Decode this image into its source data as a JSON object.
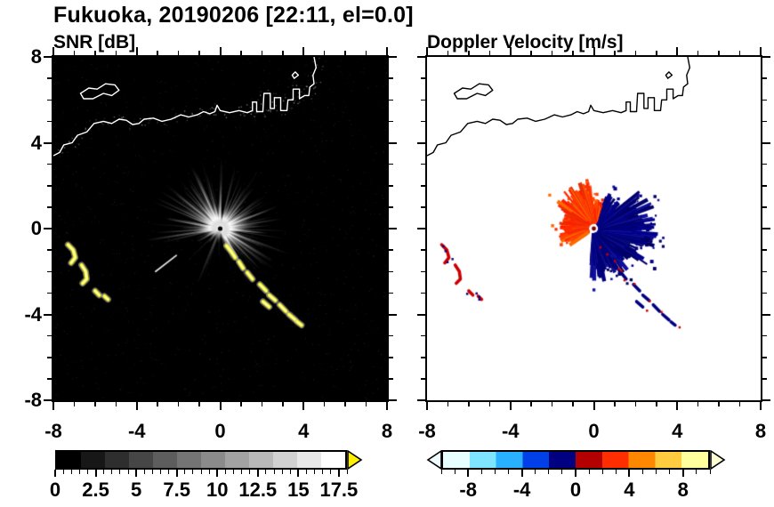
{
  "title": "Fukuoka, 20190206 [22:11, el=0.0]",
  "panels": [
    {
      "title": "SNR [dB]"
    },
    {
      "title": "Doppler Velocity [m/s]"
    }
  ],
  "axes": {
    "xlim": [
      -8,
      8
    ],
    "ylim": [
      -8,
      8
    ],
    "minor_step": 1,
    "major_ticks": [
      -8,
      -4,
      0,
      4,
      8
    ],
    "xtick_labels": [
      "-8",
      "-4",
      "0",
      "4",
      "8"
    ],
    "ytick_values": [
      8,
      4,
      0,
      -4,
      -8
    ],
    "ytick_labels": [
      "8",
      "4",
      "0",
      "-4",
      "-8"
    ]
  },
  "colorbars": [
    {
      "id": "snr",
      "style": "grayscale",
      "n_steps": 12,
      "range": [
        0,
        18
      ],
      "minor_step": 0.5,
      "tick_values": [
        0,
        2.5,
        5,
        7.5,
        10,
        12.5,
        15,
        17.5
      ],
      "tick_labels": [
        "0",
        "2.5",
        "5",
        "7.5",
        "10",
        "12.5",
        "15",
        "17.5"
      ],
      "over_arrow_color": "#ffef00"
    },
    {
      "id": "velocity",
      "style": "segments",
      "segments": [
        "#e6feff",
        "#7fe4ff",
        "#29b0ff",
        "#0040e6",
        "#000080",
        "#b30000",
        "#ff2e00",
        "#ff8800",
        "#ffcc40",
        "#ffff9e"
      ],
      "range": [
        -10,
        10
      ],
      "minor_step": 1,
      "tick_values": [
        -8,
        -4,
        0,
        4,
        8
      ],
      "tick_labels": [
        "-8",
        "-4",
        "0",
        "4",
        "8"
      ],
      "under_arrow_color": "#eefcff",
      "over_arrow_color": "#ffffd6"
    }
  ],
  "chart_data": {
    "type": "heatmap",
    "subtype": "radar-ppi-pair",
    "site": "Fukuoka",
    "date": "20190206",
    "time": "22:11",
    "elevation_deg": 0.0,
    "axis_range_km": [
      -8,
      8
    ],
    "panel_descriptions": [
      "SNR [dB]: black background, grayscale radial streaks radiating from the radar at the origin out to ~3.5 km, sparse toward the south-west; yellow over-range (>17.5 dB) clutter arcs in the west and along a south-east line",
      "Doppler Velocity [m/s]: white background, positive (red-orange) velocity fan north/north-west of radar out to ~2.4 km, negative (navy) velocity fan east/south-east out to ~3.1 km; scattered red/navy echoes mirror the SNR clutter"
    ],
    "snr_echo": {
      "n_rays": 360,
      "sparse_azimuth_deg": [
        195,
        285
      ],
      "max_range_km": 3.0,
      "lone_streak": [
        [
          -2.1,
          -1.25
        ],
        [
          -3.1,
          -2.0
        ]
      ]
    },
    "velocity_echo": {
      "positive_sector": {
        "azimuth_deg": [
          72,
          215
        ],
        "colors": [
          "#ff2a00",
          "#ff4400",
          "#e63000",
          "#ff6a00",
          "#ff1a00"
        ]
      },
      "negative_sector": {
        "azimuth_deg": [
          -95,
          70
        ],
        "colors": [
          "#000080",
          "#000066",
          "#00008b",
          "#101099"
        ]
      },
      "center_dot_color": "#800000"
    },
    "clutter_features": {
      "snr_color": "#ffff00",
      "west_cluster_color_velocity": "#cc0000",
      "west_cluster_speck_color": "#000080",
      "southeast_chain_color_velocity": "#000080",
      "southeast_chain_speck_color": "#cc0000",
      "west_cluster": [
        [
          [
            -7.3,
            -0.75
          ],
          [
            -7.05,
            -1.0
          ],
          [
            -6.95,
            -1.35
          ],
          [
            -7.15,
            -1.6
          ]
        ],
        [
          [
            -6.65,
            -1.7
          ],
          [
            -6.45,
            -2.0
          ],
          [
            -6.4,
            -2.35
          ],
          [
            -6.6,
            -2.55
          ]
        ],
        [
          [
            -6.0,
            -2.9
          ],
          [
            -5.8,
            -3.1
          ]
        ],
        [
          [
            -5.55,
            -3.15
          ],
          [
            -5.38,
            -3.3
          ]
        ]
      ],
      "southeast_chain": [
        [
          [
            0.3,
            -0.8
          ],
          [
            0.55,
            -1.1
          ],
          [
            0.72,
            -1.35
          ]
        ],
        [
          [
            0.9,
            -1.55
          ],
          [
            1.1,
            -1.85
          ]
        ],
        [
          [
            1.3,
            -2.05
          ],
          [
            1.55,
            -2.35
          ]
        ],
        [
          [
            1.9,
            -2.6
          ],
          [
            2.2,
            -2.9
          ]
        ],
        [
          [
            2.35,
            -3.1
          ],
          [
            2.65,
            -3.35
          ]
        ],
        [
          [
            2.05,
            -3.4
          ],
          [
            2.35,
            -3.65
          ]
        ],
        [
          [
            2.85,
            -3.55
          ],
          [
            3.15,
            -3.85
          ]
        ],
        [
          [
            3.3,
            -4.0
          ],
          [
            3.6,
            -4.25
          ]
        ],
        [
          [
            3.7,
            -4.35
          ],
          [
            3.9,
            -4.5
          ]
        ]
      ]
    },
    "coastline": {
      "main": [
        [
          -8,
          3.4
        ],
        [
          -7.7,
          3.55
        ],
        [
          -7.5,
          3.9
        ],
        [
          -7.1,
          4.0
        ],
        [
          -6.85,
          4.35
        ],
        [
          -6.4,
          4.5
        ],
        [
          -6.05,
          4.9
        ],
        [
          -5.6,
          5.0
        ],
        [
          -5.2,
          4.9
        ],
        [
          -4.85,
          5.1
        ],
        [
          -4.5,
          5.05
        ],
        [
          -4.2,
          4.85
        ],
        [
          -3.9,
          4.9
        ],
        [
          -3.65,
          5.1
        ],
        [
          -3.2,
          5.15
        ],
        [
          -2.8,
          5.0
        ],
        [
          -2.35,
          5.1
        ],
        [
          -1.9,
          5.3
        ],
        [
          -1.5,
          5.2
        ],
        [
          -1.1,
          5.3
        ],
        [
          -0.8,
          5.45
        ],
        [
          -0.5,
          5.35
        ],
        [
          -0.25,
          5.45
        ],
        [
          -0.15,
          5.75
        ],
        [
          0.0,
          5.5
        ],
        [
          0.45,
          5.4
        ],
        [
          0.9,
          5.5
        ],
        [
          1.3,
          5.4
        ],
        [
          1.55,
          5.5
        ],
        [
          1.55,
          5.9
        ],
        [
          1.75,
          5.9
        ],
        [
          1.75,
          5.45
        ],
        [
          2.05,
          5.45
        ],
        [
          2.1,
          6.3
        ],
        [
          2.4,
          6.3
        ],
        [
          2.4,
          5.6
        ],
        [
          2.6,
          5.6
        ],
        [
          2.6,
          6.1
        ],
        [
          2.9,
          6.1
        ],
        [
          2.9,
          5.5
        ],
        [
          3.2,
          5.5
        ],
        [
          3.25,
          6.0
        ],
        [
          3.5,
          6.0
        ],
        [
          3.5,
          6.5
        ],
        [
          3.8,
          6.5
        ],
        [
          3.8,
          6.05
        ],
        [
          4.05,
          6.2
        ],
        [
          4.25,
          6.2
        ],
        [
          4.3,
          6.6
        ],
        [
          4.5,
          6.75
        ],
        [
          4.45,
          7.15
        ],
        [
          4.6,
          7.5
        ],
        [
          4.5,
          8.0
        ]
      ],
      "island": [
        [
          -6.7,
          6.3
        ],
        [
          -6.3,
          6.55
        ],
        [
          -5.9,
          6.5
        ],
        [
          -5.5,
          6.75
        ],
        [
          -5.05,
          6.7
        ],
        [
          -4.85,
          6.45
        ],
        [
          -5.2,
          6.2
        ],
        [
          -5.6,
          6.3
        ],
        [
          -6.1,
          6.05
        ],
        [
          -6.55,
          6.05
        ]
      ],
      "islets": [
        [
          [
            3.55,
            7.0
          ],
          [
            3.75,
            7.15
          ],
          [
            3.6,
            7.3
          ],
          [
            3.45,
            7.15
          ]
        ]
      ]
    }
  }
}
